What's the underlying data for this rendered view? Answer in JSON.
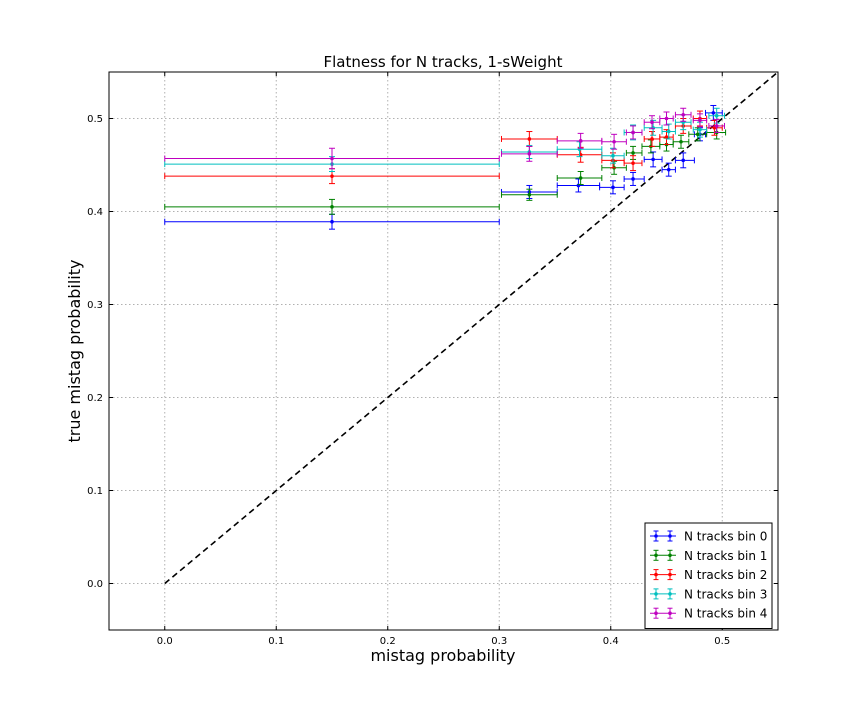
{
  "chart_data": {
    "type": "scatter",
    "title": "Flatness for N tracks, 1-sWeight",
    "xlabel": "mistag probability",
    "ylabel": "true mistag probability",
    "xlim": [
      -0.05,
      0.55
    ],
    "ylim": [
      -0.05,
      0.55
    ],
    "xticks": [
      "0.0",
      "0.1",
      "0.2",
      "0.3",
      "0.4",
      "0.5"
    ],
    "yticks": [
      "0.0",
      "0.1",
      "0.2",
      "0.3",
      "0.4",
      "0.5"
    ],
    "grid": true,
    "legend_position": "lower-right",
    "reference_line": {
      "style": "dashed",
      "color": "#000000",
      "from": [
        0,
        0
      ],
      "to": [
        0.55,
        0.55
      ]
    },
    "series": [
      {
        "name": "N tracks bin 0",
        "color": "#0000ff",
        "points": [
          {
            "x": 0.15,
            "xlo": 0.0,
            "xhi": 0.3,
            "y": 0.389,
            "yerr": 0.008
          },
          {
            "x": 0.327,
            "xlo": 0.302,
            "xhi": 0.352,
            "y": 0.421,
            "yerr": 0.007
          },
          {
            "x": 0.371,
            "xlo": 0.352,
            "xhi": 0.39,
            "y": 0.428,
            "yerr": 0.007
          },
          {
            "x": 0.402,
            "xlo": 0.39,
            "xhi": 0.412,
            "y": 0.426,
            "yerr": 0.007
          },
          {
            "x": 0.42,
            "xlo": 0.412,
            "xhi": 0.43,
            "y": 0.435,
            "yerr": 0.007
          },
          {
            "x": 0.438,
            "xlo": 0.43,
            "xhi": 0.446,
            "y": 0.456,
            "yerr": 0.008
          },
          {
            "x": 0.452,
            "xlo": 0.446,
            "xhi": 0.458,
            "y": 0.445,
            "yerr": 0.007
          },
          {
            "x": 0.465,
            "xlo": 0.458,
            "xhi": 0.475,
            "y": 0.455,
            "yerr": 0.008
          },
          {
            "x": 0.48,
            "xlo": 0.475,
            "xhi": 0.485,
            "y": 0.483,
            "yerr": 0.007
          },
          {
            "x": 0.492,
            "xlo": 0.485,
            "xhi": 0.5,
            "y": 0.506,
            "yerr": 0.008
          }
        ]
      },
      {
        "name": "N tracks bin 1",
        "color": "#008000",
        "points": [
          {
            "x": 0.15,
            "xlo": 0.0,
            "xhi": 0.3,
            "y": 0.405,
            "yerr": 0.008
          },
          {
            "x": 0.327,
            "xlo": 0.302,
            "xhi": 0.352,
            "y": 0.418,
            "yerr": 0.006
          },
          {
            "x": 0.373,
            "xlo": 0.352,
            "xhi": 0.392,
            "y": 0.436,
            "yerr": 0.007
          },
          {
            "x": 0.403,
            "xlo": 0.392,
            "xhi": 0.414,
            "y": 0.447,
            "yerr": 0.007
          },
          {
            "x": 0.42,
            "xlo": 0.414,
            "xhi": 0.428,
            "y": 0.463,
            "yerr": 0.007
          },
          {
            "x": 0.436,
            "xlo": 0.428,
            "xhi": 0.444,
            "y": 0.47,
            "yerr": 0.007
          },
          {
            "x": 0.45,
            "xlo": 0.444,
            "xhi": 0.456,
            "y": 0.472,
            "yerr": 0.007
          },
          {
            "x": 0.463,
            "xlo": 0.456,
            "xhi": 0.47,
            "y": 0.475,
            "yerr": 0.007
          },
          {
            "x": 0.478,
            "xlo": 0.47,
            "xhi": 0.486,
            "y": 0.483,
            "yerr": 0.007
          },
          {
            "x": 0.495,
            "xlo": 0.486,
            "xhi": 0.503,
            "y": 0.485,
            "yerr": 0.007
          }
        ]
      },
      {
        "name": "N tracks bin 2",
        "color": "#ff0000",
        "points": [
          {
            "x": 0.15,
            "xlo": 0.0,
            "xhi": 0.3,
            "y": 0.438,
            "yerr": 0.008
          },
          {
            "x": 0.327,
            "xlo": 0.302,
            "xhi": 0.352,
            "y": 0.478,
            "yerr": 0.008
          },
          {
            "x": 0.373,
            "xlo": 0.352,
            "xhi": 0.392,
            "y": 0.461,
            "yerr": 0.008
          },
          {
            "x": 0.402,
            "xlo": 0.392,
            "xhi": 0.412,
            "y": 0.455,
            "yerr": 0.008
          },
          {
            "x": 0.42,
            "xlo": 0.412,
            "xhi": 0.428,
            "y": 0.452,
            "yerr": 0.008
          },
          {
            "x": 0.437,
            "xlo": 0.43,
            "xhi": 0.444,
            "y": 0.478,
            "yerr": 0.008
          },
          {
            "x": 0.45,
            "xlo": 0.444,
            "xhi": 0.456,
            "y": 0.48,
            "yerr": 0.008
          },
          {
            "x": 0.465,
            "xlo": 0.458,
            "xhi": 0.472,
            "y": 0.492,
            "yerr": 0.008
          },
          {
            "x": 0.48,
            "xlo": 0.474,
            "xhi": 0.486,
            "y": 0.5,
            "yerr": 0.008
          },
          {
            "x": 0.493,
            "xlo": 0.486,
            "xhi": 0.5,
            "y": 0.49,
            "yerr": 0.008
          }
        ]
      },
      {
        "name": "N tracks bin 3",
        "color": "#00bfbf",
        "points": [
          {
            "x": 0.15,
            "xlo": 0.0,
            "xhi": 0.3,
            "y": 0.451,
            "yerr": 0.008
          },
          {
            "x": 0.327,
            "xlo": 0.302,
            "xhi": 0.352,
            "y": 0.464,
            "yerr": 0.007
          },
          {
            "x": 0.372,
            "xlo": 0.352,
            "xhi": 0.392,
            "y": 0.467,
            "yerr": 0.008
          },
          {
            "x": 0.402,
            "xlo": 0.392,
            "xhi": 0.412,
            "y": 0.46,
            "yerr": 0.008
          },
          {
            "x": 0.42,
            "xlo": 0.412,
            "xhi": 0.428,
            "y": 0.485,
            "yerr": 0.008
          },
          {
            "x": 0.438,
            "xlo": 0.43,
            "xhi": 0.446,
            "y": 0.49,
            "yerr": 0.008
          },
          {
            "x": 0.452,
            "xlo": 0.446,
            "xhi": 0.458,
            "y": 0.486,
            "yerr": 0.008
          },
          {
            "x": 0.465,
            "xlo": 0.458,
            "xhi": 0.472,
            "y": 0.496,
            "yerr": 0.008
          },
          {
            "x": 0.48,
            "xlo": 0.474,
            "xhi": 0.486,
            "y": 0.488,
            "yerr": 0.008
          },
          {
            "x": 0.495,
            "xlo": 0.488,
            "xhi": 0.502,
            "y": 0.503,
            "yerr": 0.008
          }
        ]
      },
      {
        "name": "N tracks bin 4",
        "color": "#bf00bf",
        "points": [
          {
            "x": 0.15,
            "xlo": 0.0,
            "xhi": 0.3,
            "y": 0.457,
            "yerr": 0.011
          },
          {
            "x": 0.327,
            "xlo": 0.302,
            "xhi": 0.352,
            "y": 0.462,
            "yerr": 0.008
          },
          {
            "x": 0.373,
            "xlo": 0.352,
            "xhi": 0.392,
            "y": 0.476,
            "yerr": 0.008
          },
          {
            "x": 0.403,
            "xlo": 0.392,
            "xhi": 0.414,
            "y": 0.475,
            "yerr": 0.008
          },
          {
            "x": 0.42,
            "xlo": 0.414,
            "xhi": 0.428,
            "y": 0.485,
            "yerr": 0.007
          },
          {
            "x": 0.437,
            "xlo": 0.43,
            "xhi": 0.444,
            "y": 0.496,
            "yerr": 0.007
          },
          {
            "x": 0.45,
            "xlo": 0.444,
            "xhi": 0.456,
            "y": 0.5,
            "yerr": 0.007
          },
          {
            "x": 0.465,
            "xlo": 0.458,
            "xhi": 0.472,
            "y": 0.504,
            "yerr": 0.007
          },
          {
            "x": 0.48,
            "xlo": 0.474,
            "xhi": 0.486,
            "y": 0.498,
            "yerr": 0.007
          },
          {
            "x": 0.495,
            "xlo": 0.488,
            "xhi": 0.502,
            "y": 0.492,
            "yerr": 0.007
          }
        ]
      }
    ]
  }
}
